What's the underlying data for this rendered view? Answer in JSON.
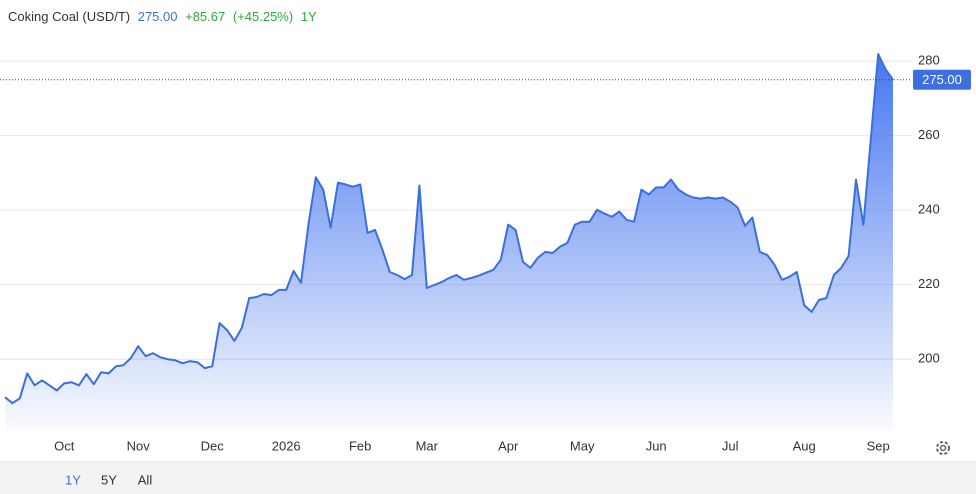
{
  "chart_data": {
    "type": "area",
    "title": "Coking Coal (USD/T)",
    "price": "275.00",
    "change": "+85.67",
    "change_percent": "(+45.25%)",
    "period": "1Y",
    "range_buttons": [
      "1Y",
      "5Y",
      "All"
    ],
    "color": "#3b6fdc",
    "grid": true,
    "ylim": [
      181,
      287
    ],
    "yticks": [
      200,
      220,
      240,
      260,
      280
    ],
    "categories": [
      null,
      null,
      null,
      null,
      null,
      null,
      null,
      null,
      "Oct",
      null,
      null,
      null,
      null,
      null,
      null,
      null,
      null,
      null,
      "Nov",
      null,
      null,
      null,
      null,
      null,
      null,
      null,
      null,
      null,
      "Dec",
      null,
      null,
      null,
      null,
      null,
      null,
      null,
      null,
      null,
      "2026",
      null,
      null,
      null,
      null,
      null,
      null,
      null,
      null,
      null,
      "Feb",
      null,
      null,
      null,
      null,
      null,
      null,
      null,
      null,
      "Mar",
      null,
      null,
      null,
      null,
      null,
      null,
      null,
      null,
      null,
      null,
      "Apr",
      null,
      null,
      null,
      null,
      null,
      null,
      null,
      null,
      null,
      "May",
      null,
      null,
      null,
      null,
      null,
      null,
      null,
      null,
      null,
      "Jun",
      null,
      null,
      null,
      null,
      null,
      null,
      null,
      null,
      null,
      "Jul",
      null,
      null,
      null,
      null,
      null,
      null,
      null,
      null,
      null,
      "Aug",
      null,
      null,
      null,
      null,
      null,
      null,
      null,
      null,
      null,
      "Sep",
      null,
      null
    ],
    "values": [
      189.8,
      188.2,
      189.5,
      196.2,
      193,
      194.3,
      193,
      191.6,
      193.5,
      193.8,
      193,
      196,
      193.3,
      196.5,
      196.2,
      198.1,
      198.4,
      200.3,
      203.5,
      200.8,
      201.6,
      200.5,
      200,
      199.7,
      198.9,
      199.5,
      199.2,
      197.6,
      198.1,
      209.7,
      207.8,
      204.9,
      208.4,
      216.4,
      216.7,
      217.5,
      217.2,
      218.6,
      218.6,
      223.7,
      220.5,
      236.1,
      248.8,
      245.5,
      235.3,
      247.4,
      246.9,
      246.3,
      246.9,
      233.9,
      234.7,
      229.4,
      223.4,
      222.6,
      221.5,
      222.6,
      246.6,
      219.1,
      219.9,
      220.7,
      221.8,
      222.6,
      221.3,
      221.8,
      222.4,
      223.2,
      224,
      226.7,
      236.1,
      234.7,
      226.1,
      224.5,
      227.2,
      228.8,
      228.5,
      230.2,
      231.2,
      236.1,
      236.9,
      236.9,
      240.1,
      239.1,
      238.2,
      239.6,
      237.4,
      236.9,
      245.5,
      244.2,
      246.1,
      246.1,
      248.2,
      245.5,
      244.2,
      243.4,
      243.1,
      243.4,
      243.1,
      243.4,
      242.3,
      240.7,
      235.8,
      238,
      228.8,
      228,
      225.3,
      221.3,
      222.1,
      223.4,
      214.5,
      212.7,
      215.9,
      216.4,
      222.6,
      224.5,
      227.7,
      248.2,
      236.1,
      259,
      281.9,
      277.8,
      275
    ]
  }
}
